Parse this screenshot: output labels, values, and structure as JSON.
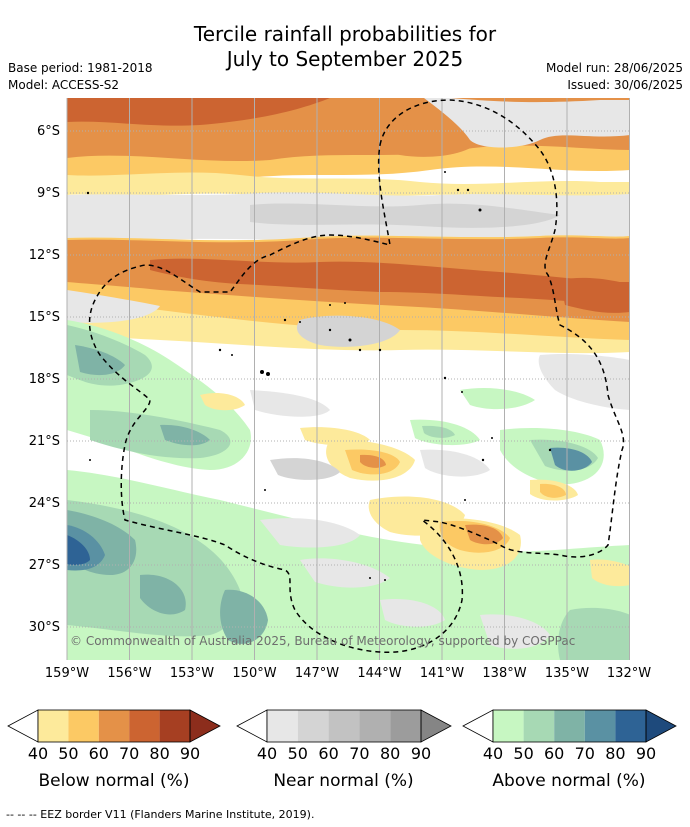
{
  "title_line1": "Tercile rainfall probabilities for",
  "title_line2": "July to September 2025",
  "base_period": "Base period: 1981-2018",
  "model": "Model: ACCESS-S2",
  "model_run": "Model run: 28/06/2025",
  "issued": "Issued: 30/06/2025",
  "lat_labels": [
    "6°S",
    "9°S",
    "12°S",
    "15°S",
    "18°S",
    "21°S",
    "24°S",
    "27°S",
    "30°S"
  ],
  "lon_labels": [
    "159°W",
    "156°W",
    "153°W",
    "150°W",
    "147°W",
    "144°W",
    "141°W",
    "138°W",
    "135°W",
    "132°W"
  ],
  "copyright": "© Commonwealth of Australia 2025, Bureau of Meteorology, supported by COSPPac",
  "legend": {
    "ticks": [
      "40",
      "50",
      "60",
      "70",
      "80",
      "90"
    ],
    "below": {
      "title": "Below normal (%)",
      "colors": [
        "#fdea9b",
        "#fcc964",
        "#e49148",
        "#cc6431",
        "#a63f22",
        "#8c2d1c"
      ]
    },
    "near": {
      "title": "Near normal (%)",
      "colors": [
        "#e7e7e7",
        "#d4d4d4",
        "#c2c2c2",
        "#b0b0b0",
        "#9c9c9c",
        "#858585"
      ]
    },
    "above": {
      "title": "Above normal (%)",
      "colors": [
        "#c7f7c2",
        "#a7d9b4",
        "#7fb3a6",
        "#5a91a3",
        "#2e6395",
        "#1e4a7c"
      ]
    }
  },
  "footer": "-- -- -- EEZ border V11 (Flanders Marine Institute, 2019)."
}
